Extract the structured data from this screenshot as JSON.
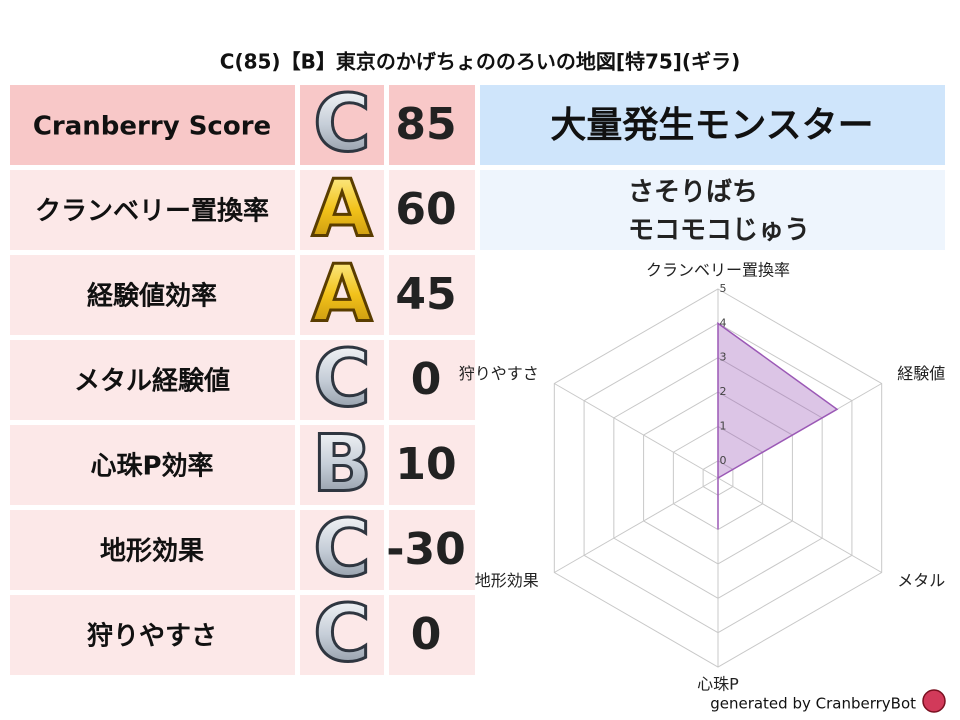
{
  "title": "C(85)【B】東京のかげちょののろいの地図[特75](ギラ)",
  "score_table": {
    "rows": [
      {
        "label": "Cranberry Score",
        "grade": "C",
        "value": 85
      },
      {
        "label": "クランベリー置換率",
        "grade": "A",
        "value": 60
      },
      {
        "label": "経験値効率",
        "grade": "A",
        "value": 45
      },
      {
        "label": "メタル経験値",
        "grade": "C",
        "value": 0
      },
      {
        "label": "心珠P効率",
        "grade": "B",
        "value": 10
      },
      {
        "label": "地形効果",
        "grade": "C",
        "value": -30
      },
      {
        "label": "狩りやすさ",
        "grade": "C",
        "value": 0
      }
    ]
  },
  "monster_type": "大量発生モンスター",
  "monsters": [
    "さそりばち",
    "モコモコじゅう"
  ],
  "chart_data": {
    "type": "radar",
    "categories": [
      "クランベリー置換率",
      "経験値",
      "メタル",
      "心珠P",
      "地形効果",
      "狩りやすさ"
    ],
    "values": [
      4,
      3.5,
      -0.5,
      1,
      -0.5,
      -0.5
    ],
    "color": "#9b59b6",
    "ylim": [
      -0.5,
      5
    ],
    "yticks": [
      0,
      1,
      2,
      3,
      4,
      5
    ],
    "grid": true
  },
  "footer": "generated by CranberryBot"
}
